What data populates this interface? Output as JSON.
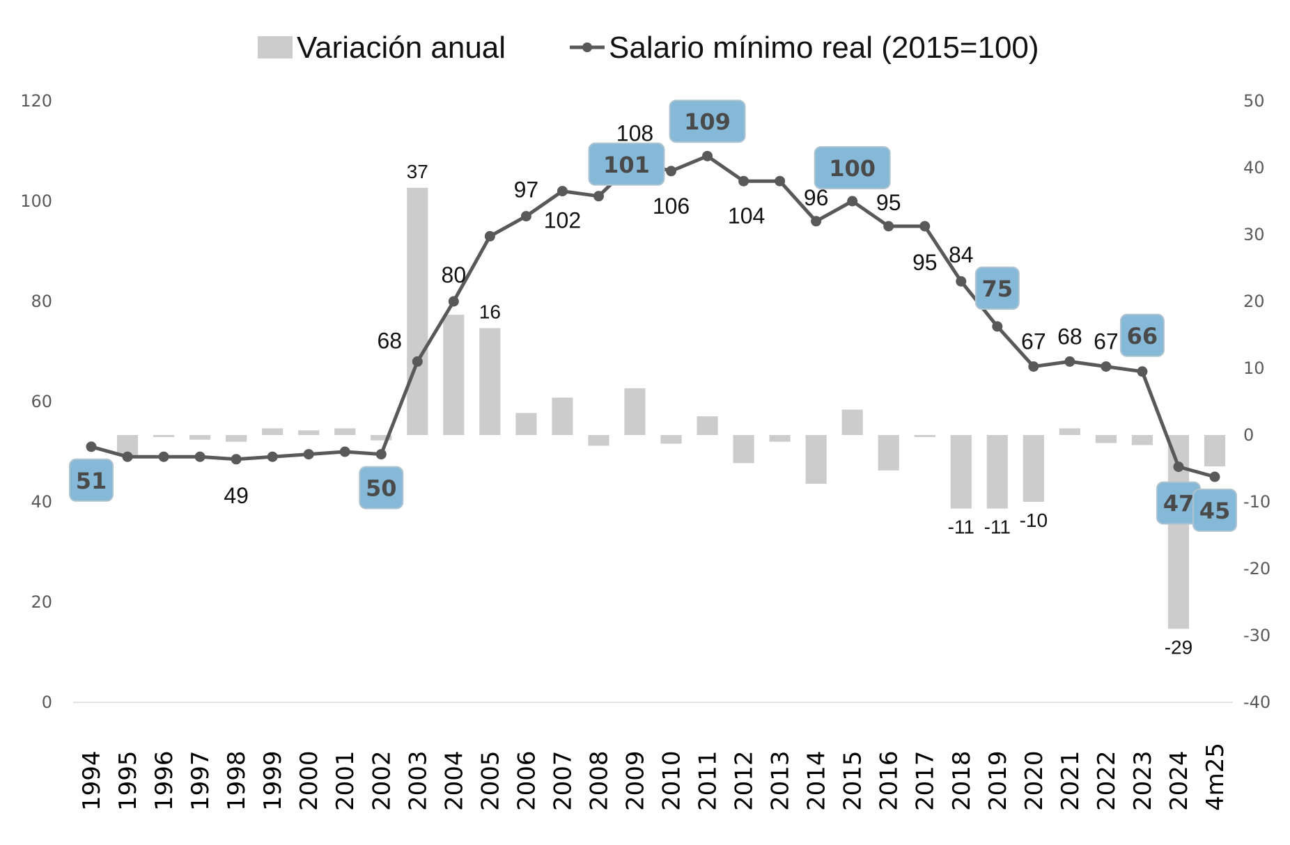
{
  "chart_data": {
    "type": "bar+line",
    "title": "",
    "legend": {
      "position": "top-center",
      "entries": [
        {
          "name": "Variación anual",
          "kind": "bar"
        },
        {
          "name": "Salario mínimo real (2015=100)",
          "kind": "line"
        }
      ]
    },
    "categories": [
      "1994",
      "1995",
      "1996",
      "1997",
      "1998",
      "1999",
      "2000",
      "2001",
      "2002",
      "2003",
      "2004",
      "2005",
      "2006",
      "2007",
      "2008",
      "2009",
      "2010",
      "2011",
      "2012",
      "2013",
      "2014",
      "2015",
      "2016",
      "2017",
      "2018",
      "2019",
      "2020",
      "2021",
      "2022",
      "2023",
      "2024",
      "4m25"
    ],
    "left_axis": {
      "min": 0,
      "max": 120,
      "ticks": [
        "0",
        "20",
        "40",
        "60",
        "80",
        "100",
        "120"
      ]
    },
    "right_axis": {
      "min": -40,
      "max": 50,
      "ticks": [
        "-40",
        "-30",
        "-20",
        "-10",
        "0",
        "10",
        "20",
        "30",
        "40",
        "50"
      ]
    },
    "grid": false,
    "series": [
      {
        "name": "Variación anual",
        "axis": "right",
        "type": "bar",
        "color": "#cccccc",
        "values": [
          null,
          -3,
          -0.3,
          -0.7,
          -1.0,
          1.0,
          0.7,
          1.0,
          -0.8,
          37,
          18,
          16,
          3.3,
          5.6,
          -1.6,
          7,
          -1.3,
          2.8,
          -4.2,
          -1.0,
          -7.3,
          3.8,
          -5.3,
          -0.3,
          -11,
          -11,
          -10,
          1.0,
          -1.2,
          -1.5,
          -29,
          -4.7
        ],
        "labels": [
          {
            "category": "2003",
            "text": "37"
          },
          {
            "category": "2005",
            "text": "16"
          },
          {
            "category": "2018",
            "text": "-11"
          },
          {
            "category": "2019",
            "text": "-11"
          },
          {
            "category": "2020",
            "text": "-10"
          },
          {
            "category": "2024",
            "text": "-29"
          }
        ]
      },
      {
        "name": "Salario mínimo real (2015=100)",
        "axis": "left",
        "type": "line",
        "color": "#595959",
        "values": [
          51,
          49,
          49,
          49,
          48.5,
          49,
          49.5,
          50,
          49.5,
          68,
          80,
          93,
          97,
          102,
          101,
          108,
          106,
          109,
          104,
          104,
          96,
          100,
          95,
          95,
          84,
          75,
          67,
          68,
          67,
          66,
          47,
          45
        ],
        "labels": [
          {
            "category": "1994",
            "text": "51",
            "highlight": true
          },
          {
            "category": "1998",
            "text": "49",
            "highlight": false
          },
          {
            "category": "2002",
            "text": "50",
            "highlight": true
          },
          {
            "category": "2003",
            "text": "68",
            "highlight": false
          },
          {
            "category": "2004",
            "text": "80",
            "highlight": false
          },
          {
            "category": "2006",
            "text": "97",
            "highlight": false
          },
          {
            "category": "2007",
            "text": "102",
            "highlight": false
          },
          {
            "category": "2008",
            "text": "101",
            "highlight": true
          },
          {
            "category": "2009",
            "text": "108",
            "highlight": false
          },
          {
            "category": "2010",
            "text": "106",
            "highlight": false
          },
          {
            "category": "2011",
            "text": "109",
            "highlight": true
          },
          {
            "category": "2013",
            "text": "104",
            "highlight": false
          },
          {
            "category": "2014",
            "text": "96",
            "highlight": false
          },
          {
            "category": "2015",
            "text": "100",
            "highlight": true
          },
          {
            "category": "2016",
            "text": "95",
            "highlight": false
          },
          {
            "category": "2017",
            "text": "95",
            "highlight": false
          },
          {
            "category": "2018",
            "text": "84",
            "highlight": false
          },
          {
            "category": "2019",
            "text": "75",
            "highlight": true
          },
          {
            "category": "2020",
            "text": "67",
            "highlight": false
          },
          {
            "category": "2021",
            "text": "68",
            "highlight": false
          },
          {
            "category": "2022",
            "text": "67",
            "highlight": false
          },
          {
            "category": "2023",
            "text": "66",
            "highlight": true
          },
          {
            "category": "2024",
            "text": "47",
            "highlight": true
          },
          {
            "category": "4m25",
            "text": "45",
            "highlight": true
          }
        ]
      }
    ],
    "highlight_color": "#86b8d8"
  }
}
